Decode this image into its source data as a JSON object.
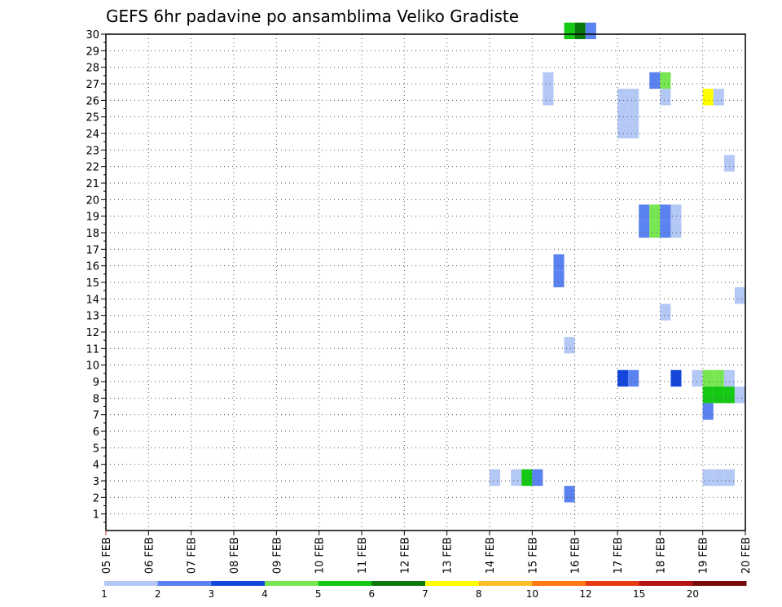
{
  "chart_data": {
    "type": "heatmap",
    "title": "GEFS 6hr padavine po ansamblima Veliko Gradiste",
    "x_ticks": [
      "05 FEB",
      "06 FEB",
      "07 FEB",
      "08 FEB",
      "09 FEB",
      "10 FEB",
      "11 FEB",
      "12 FEB",
      "13 FEB",
      "14 FEB",
      "15 FEB",
      "16 FEB",
      "17 FEB",
      "18 FEB",
      "19 FEB",
      "20 FEB"
    ],
    "xlim": [
      0,
      15
    ],
    "ylim": [
      0,
      30
    ],
    "y_ticks": [
      1,
      2,
      3,
      4,
      5,
      6,
      7,
      8,
      9,
      10,
      11,
      12,
      13,
      14,
      15,
      16,
      17,
      18,
      19,
      20,
      21,
      22,
      23,
      24,
      25,
      26,
      27,
      28,
      29,
      30
    ],
    "grid": true,
    "cell_width_days": 0.25,
    "colorbar": {
      "thresholds": [
        "1",
        "2",
        "3",
        "4",
        "5",
        "6",
        "7",
        "8",
        "10",
        "12",
        "15",
        "20"
      ],
      "colors": [
        "#b4c8f5",
        "#5a82f0",
        "#1446dc",
        "#78e650",
        "#14c814",
        "#0a780a",
        "#ffff00",
        "#ffbe28",
        "#ff7814",
        "#e63c14",
        "#b41414",
        "#780a0a"
      ]
    },
    "cells": [
      {
        "member": 30,
        "x": 10.75,
        "cls": 4
      },
      {
        "member": 30,
        "x": 11.0,
        "cls": 5
      },
      {
        "member": 30,
        "x": 11.25,
        "cls": 1
      },
      {
        "member": 27,
        "x": 10.25,
        "cls": 0
      },
      {
        "member": 27,
        "x": 12.75,
        "cls": 1
      },
      {
        "member": 27,
        "x": 13.0,
        "cls": 3
      },
      {
        "member": 26,
        "x": 10.25,
        "cls": 0
      },
      {
        "member": 26,
        "x": 12.0,
        "cls": 0
      },
      {
        "member": 26,
        "x": 12.25,
        "cls": 0
      },
      {
        "member": 26,
        "x": 13.0,
        "cls": 0
      },
      {
        "member": 26,
        "x": 14.0,
        "cls": 6
      },
      {
        "member": 26,
        "x": 14.25,
        "cls": 0
      },
      {
        "member": 25,
        "x": 12.0,
        "cls": 0
      },
      {
        "member": 25,
        "x": 12.25,
        "cls": 0
      },
      {
        "member": 24,
        "x": 12.0,
        "cls": 0
      },
      {
        "member": 24,
        "x": 12.25,
        "cls": 0
      },
      {
        "member": 22,
        "x": 14.5,
        "cls": 0
      },
      {
        "member": 19,
        "x": 12.5,
        "cls": 1
      },
      {
        "member": 19,
        "x": 12.75,
        "cls": 3
      },
      {
        "member": 19,
        "x": 13.0,
        "cls": 1
      },
      {
        "member": 19,
        "x": 13.25,
        "cls": 0
      },
      {
        "member": 18,
        "x": 12.5,
        "cls": 1
      },
      {
        "member": 18,
        "x": 12.75,
        "cls": 3
      },
      {
        "member": 18,
        "x": 13.0,
        "cls": 1
      },
      {
        "member": 18,
        "x": 13.25,
        "cls": 0
      },
      {
        "member": 16,
        "x": 10.5,
        "cls": 1
      },
      {
        "member": 15,
        "x": 10.5,
        "cls": 1
      },
      {
        "member": 14,
        "x": 14.75,
        "cls": 0
      },
      {
        "member": 13,
        "x": 13.0,
        "cls": 0
      },
      {
        "member": 11,
        "x": 10.75,
        "cls": 0
      },
      {
        "member": 9,
        "x": 12.0,
        "cls": 2
      },
      {
        "member": 9,
        "x": 12.25,
        "cls": 1
      },
      {
        "member": 9,
        "x": 13.25,
        "cls": 2
      },
      {
        "member": 9,
        "x": 13.75,
        "cls": 0
      },
      {
        "member": 9,
        "x": 14.0,
        "cls": 3
      },
      {
        "member": 9,
        "x": 14.25,
        "cls": 3
      },
      {
        "member": 9,
        "x": 14.5,
        "cls": 0
      },
      {
        "member": 8,
        "x": 14.0,
        "cls": 4
      },
      {
        "member": 8,
        "x": 14.25,
        "cls": 4
      },
      {
        "member": 8,
        "x": 14.5,
        "cls": 4
      },
      {
        "member": 8,
        "x": 14.75,
        "cls": 0
      },
      {
        "member": 7,
        "x": 14.0,
        "cls": 1
      },
      {
        "member": 3,
        "x": 9.0,
        "cls": 0
      },
      {
        "member": 3,
        "x": 9.5,
        "cls": 0
      },
      {
        "member": 3,
        "x": 9.75,
        "cls": 4
      },
      {
        "member": 3,
        "x": 10.0,
        "cls": 1
      },
      {
        "member": 3,
        "x": 14.0,
        "cls": 0
      },
      {
        "member": 3,
        "x": 14.25,
        "cls": 0
      },
      {
        "member": 3,
        "x": 14.5,
        "cls": 0
      },
      {
        "member": 2,
        "x": 10.75,
        "cls": 1
      }
    ]
  }
}
